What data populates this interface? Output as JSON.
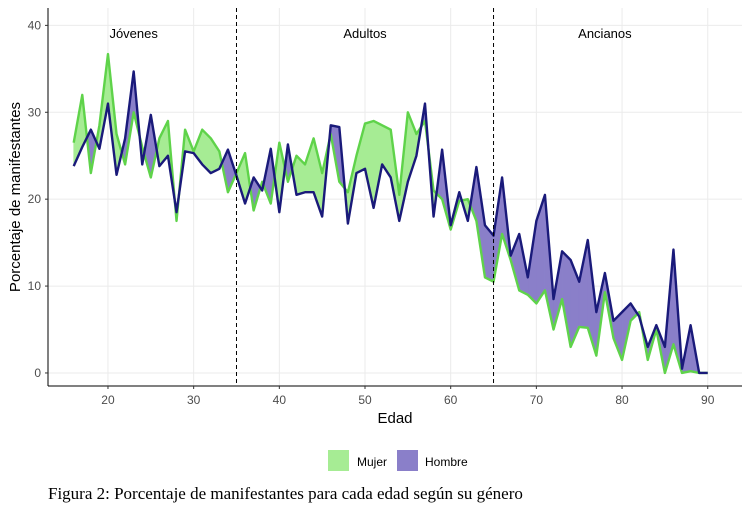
{
  "caption": "Figura 2: Porcentaje de manifestantes para cada edad según su género",
  "chart_data": {
    "type": "area",
    "xlabel": "Edad",
    "ylabel": "Porcentaje de manifestantes",
    "xlim": [
      13,
      94
    ],
    "ylim": [
      -1.5,
      42
    ],
    "xticks": [
      20,
      30,
      40,
      50,
      60,
      70,
      80,
      90
    ],
    "yticks": [
      0,
      10,
      20,
      30,
      40
    ],
    "grid": true,
    "vlines": [
      35,
      65
    ],
    "regions": [
      {
        "label": "Jóvenes",
        "x": 23
      },
      {
        "label": "Adultos",
        "x": 50
      },
      {
        "label": "Ancianos",
        "x": 78
      }
    ],
    "legend_position": "bottom",
    "x": [
      16,
      17,
      18,
      19,
      20,
      21,
      22,
      23,
      24,
      25,
      26,
      27,
      28,
      29,
      30,
      31,
      32,
      33,
      34,
      35,
      36,
      37,
      38,
      39,
      40,
      41,
      42,
      43,
      44,
      45,
      46,
      47,
      48,
      49,
      50,
      51,
      52,
      53,
      54,
      55,
      56,
      57,
      58,
      59,
      60,
      61,
      62,
      63,
      64,
      65,
      66,
      67,
      68,
      69,
      70,
      71,
      72,
      73,
      74,
      75,
      76,
      77,
      78,
      79,
      80,
      81,
      82,
      83,
      84,
      85,
      86,
      87,
      88,
      89,
      90
    ],
    "series": [
      {
        "name": "Mujer",
        "line_color": "#5fd34a",
        "fill_color": "#a6ec94",
        "values": [
          26.5,
          32.0,
          23.0,
          28.5,
          36.7,
          27.5,
          24.0,
          30.0,
          26.0,
          22.5,
          27.0,
          29.0,
          17.5,
          28.0,
          25.5,
          28.0,
          27.0,
          25.5,
          20.8,
          23.0,
          25.3,
          18.7,
          22.0,
          19.5,
          26.5,
          22.0,
          25.0,
          24.0,
          27.0,
          23.0,
          27.5,
          22.0,
          20.8,
          25.0,
          28.7,
          29.0,
          28.5,
          28.0,
          20.5,
          30.0,
          27.5,
          29.0,
          21.0,
          20.0,
          16.5,
          19.8,
          20.0,
          17.5,
          11.0,
          10.5,
          16.0,
          13.0,
          9.5,
          9.0,
          8.0,
          9.5,
          5.0,
          8.5,
          3.0,
          5.3,
          5.2,
          2.0,
          9.3,
          4.0,
          1.5,
          6.0,
          7.0,
          1.5,
          5.0,
          0.0,
          3.3,
          0.0,
          0.2,
          0.0,
          0.0
        ]
      },
      {
        "name": "Hombre",
        "line_color": "#1a1a7a",
        "fill_color": "#8a7fc9",
        "values": [
          23.8,
          26.0,
          28.0,
          25.8,
          31.0,
          22.8,
          27.0,
          34.7,
          24.0,
          29.7,
          23.8,
          25.0,
          18.5,
          25.5,
          25.3,
          24.0,
          23.0,
          23.5,
          25.7,
          22.7,
          19.5,
          22.5,
          21.0,
          25.8,
          18.5,
          26.3,
          20.5,
          20.8,
          20.8,
          18.0,
          28.5,
          28.3,
          17.2,
          23.0,
          23.5,
          19.0,
          24.0,
          22.5,
          17.5,
          22.0,
          25.0,
          31.0,
          18.0,
          25.7,
          17.0,
          20.8,
          17.5,
          23.7,
          17.0,
          15.8,
          22.5,
          13.5,
          16.0,
          11.0,
          17.5,
          20.5,
          8.5,
          14.0,
          13.0,
          10.5,
          15.3,
          7.0,
          11.5,
          6.0,
          7.0,
          8.0,
          6.5,
          3.0,
          5.5,
          3.0,
          14.2,
          0.5,
          5.5,
          0.0,
          0.0
        ]
      }
    ]
  }
}
